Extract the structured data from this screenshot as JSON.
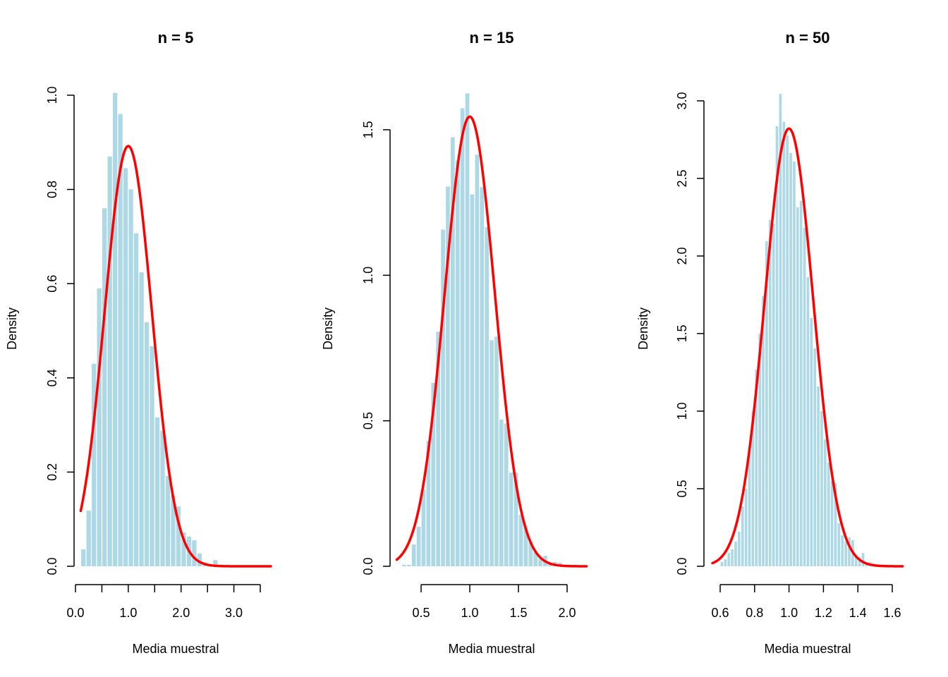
{
  "chart_data": [
    {
      "type": "bar",
      "title": "n = 5",
      "xlabel": "Media muestral",
      "ylabel": "Density",
      "xlim": [
        0.0,
        3.5
      ],
      "ylim": [
        0.0,
        1.0
      ],
      "xticks": [
        0.0,
        0.5,
        1.0,
        1.5,
        2.0,
        2.5,
        3.0,
        3.5
      ],
      "xtick_labels": [
        "0.0",
        "",
        "1.0",
        "",
        "2.0",
        "",
        "3.0",
        ""
      ],
      "yticks": [
        0.0,
        0.2,
        0.4,
        0.6,
        0.8,
        1.0
      ],
      "ytick_labels": [
        "0.0",
        "0.2",
        "0.4",
        "0.6",
        "0.8",
        "1.0"
      ],
      "grid": false,
      "bar_color": "#add8e6",
      "bin_start": 0.1,
      "bin_width": 0.1,
      "values": [
        0.036,
        0.118,
        0.43,
        0.59,
        0.76,
        0.87,
        1.005,
        0.96,
        0.845,
        0.8,
        0.707,
        0.624,
        0.518,
        0.467,
        0.316,
        0.288,
        0.192,
        0.15,
        0.127,
        0.072,
        0.063,
        0.055,
        0.027,
        0.009,
        0.003,
        0.013
      ],
      "curve": {
        "type": "normal-density",
        "mean": 1.0,
        "sd": 0.4472,
        "x_from": 0.1,
        "x_to": 3.7,
        "color": "#ff0000"
      }
    },
    {
      "type": "bar",
      "title": "n = 15",
      "xlabel": "Media muestral",
      "ylabel": "Density",
      "xlim": [
        0.5,
        2.0
      ],
      "ylim": [
        0.0,
        1.5
      ],
      "xticks": [
        0.5,
        1.0,
        1.5,
        2.0
      ],
      "xtick_labels": [
        "0.5",
        "1.0",
        "1.5",
        "2.0"
      ],
      "yticks": [
        0.0,
        0.5,
        1.0,
        1.5
      ],
      "ytick_labels": [
        "0.0",
        "0.5",
        "1.0",
        "1.5"
      ],
      "grid": false,
      "bar_color": "#add8e6",
      "bin_start": 0.3,
      "bin_width": 0.05,
      "values": [
        0.005,
        0.005,
        0.075,
        0.136,
        0.264,
        0.431,
        0.63,
        0.806,
        1.157,
        1.305,
        1.474,
        1.395,
        1.574,
        1.625,
        1.278,
        1.414,
        1.303,
        1.165,
        0.777,
        0.789,
        0.504,
        0.491,
        0.322,
        0.322,
        0.177,
        0.14,
        0.085,
        0.05,
        0.027,
        0.036,
        0.008,
        0.015,
        0.012
      ],
      "curve": {
        "type": "normal-density",
        "mean": 1.0,
        "sd": 0.2582,
        "x_from": 0.25,
        "x_to": 2.2,
        "color": "#ff0000"
      }
    },
    {
      "type": "bar",
      "title": "n = 50",
      "xlabel": "Media muestral",
      "ylabel": "Density",
      "xlim": [
        0.6,
        1.6
      ],
      "ylim": [
        0.0,
        3.0
      ],
      "xticks": [
        0.6,
        0.8,
        1.0,
        1.2,
        1.4,
        1.6
      ],
      "xtick_labels": [
        "0.6",
        "0.8",
        "1.0",
        "1.2",
        "1.4",
        "1.6"
      ],
      "yticks": [
        0.0,
        0.5,
        1.0,
        1.5,
        2.0,
        2.5,
        3.0
      ],
      "ytick_labels": [
        "0.0",
        "0.5",
        "1.0",
        "1.5",
        "2.0",
        "2.5",
        "3.0"
      ],
      "grid": false,
      "bar_color": "#add8e6",
      "bin_start": 0.6,
      "bin_width": 0.02,
      "values": [
        0.027,
        0.045,
        0.086,
        0.109,
        0.16,
        0.223,
        0.386,
        0.5,
        0.75,
        1.0,
        1.268,
        1.5,
        1.741,
        2.095,
        2.232,
        2.209,
        2.836,
        3.045,
        2.864,
        2.777,
        2.664,
        2.609,
        2.314,
        2.355,
        2.182,
        1.864,
        1.6,
        1.405,
        1.159,
        1.0,
        0.818,
        0.668,
        0.55,
        0.536,
        0.277,
        0.2,
        0.16,
        0.186,
        0.168,
        0.06,
        0.059,
        0.086,
        0.02,
        0.027,
        0.018
      ],
      "curve": {
        "type": "normal-density",
        "mean": 1.0,
        "sd": 0.1414,
        "x_from": 0.555,
        "x_to": 1.66,
        "color": "#ff0000"
      }
    }
  ]
}
